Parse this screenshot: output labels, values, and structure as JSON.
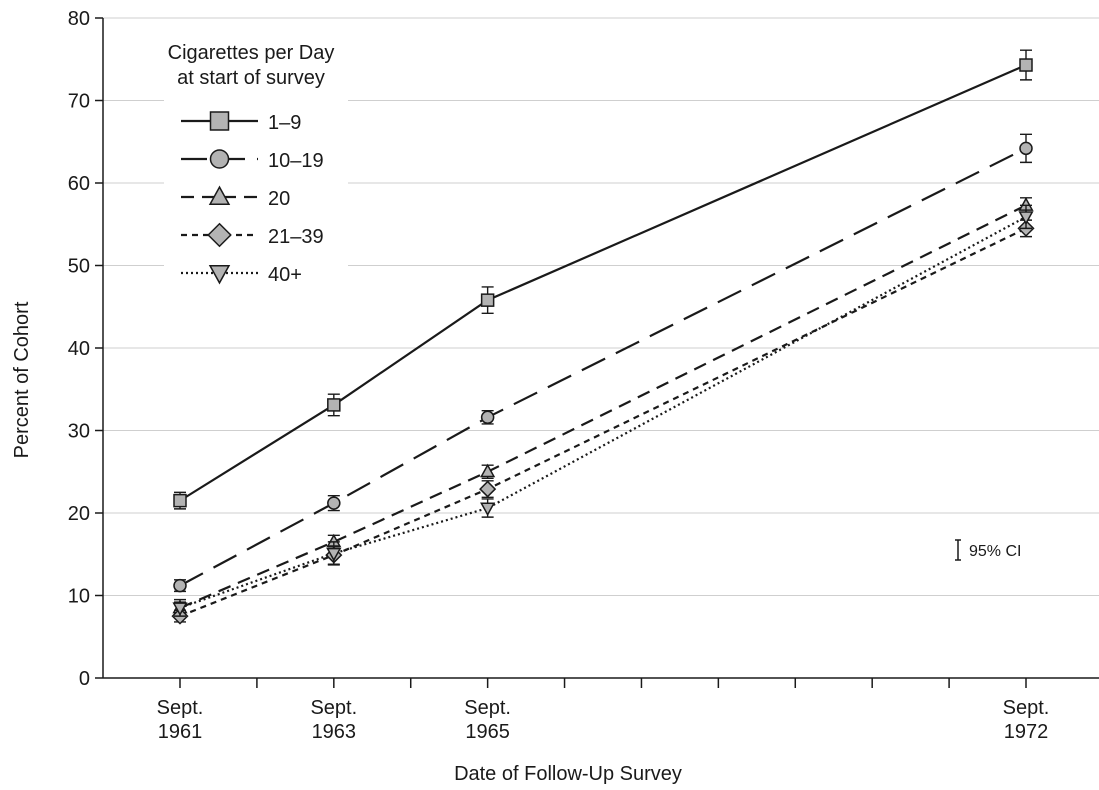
{
  "chart_data": {
    "type": "line",
    "title": "",
    "xlabel": "Date of Follow-Up Survey",
    "ylabel": "Percent of Cohort",
    "x_axis": {
      "range": [
        1961,
        1972
      ],
      "ticks": [
        {
          "x": 1961,
          "line1": "Sept.",
          "line2": "1961"
        },
        {
          "x": 1963,
          "line1": "Sept.",
          "line2": "1963"
        },
        {
          "x": 1965,
          "line1": "Sept.",
          "line2": "1965"
        },
        {
          "x": 1972,
          "line1": "Sept.",
          "line2": "1972"
        }
      ],
      "minor_ticks": [
        1962,
        1964,
        1966,
        1967,
        1968,
        1969,
        1970,
        1971
      ]
    },
    "y_axis": {
      "range": [
        0,
        80
      ],
      "ticks": [
        0,
        10,
        20,
        30,
        40,
        50,
        60,
        70,
        80
      ],
      "gridlines": true
    },
    "legend": {
      "title_line1": "Cigarettes per Day",
      "title_line2": "at start of survey",
      "placement": "top-left"
    },
    "ci_annotation": "95% CI",
    "x": [
      1961,
      1963,
      1965,
      1972
    ],
    "series": [
      {
        "name": "1–9",
        "values": [
          21.5,
          33.1,
          45.8,
          74.3
        ],
        "ci": [
          1.0,
          1.3,
          1.6,
          1.8
        ],
        "marker": "square",
        "dash": "solid"
      },
      {
        "name": "10–19",
        "values": [
          11.2,
          21.2,
          31.6,
          64.2
        ],
        "ci": [
          0.7,
          0.9,
          0.8,
          1.7
        ],
        "marker": "circle",
        "dash": "long-dash"
      },
      {
        "name": "20",
        "values": [
          8.5,
          16.5,
          25.0,
          57.3
        ],
        "ci": [
          0.7,
          0.8,
          0.8,
          0.9
        ],
        "marker": "triangle-up",
        "dash": "dash"
      },
      {
        "name": "21–39",
        "values": [
          7.5,
          14.9,
          22.9,
          54.5
        ],
        "ci": [
          0.7,
          1.1,
          1.0,
          1.0
        ],
        "marker": "diamond",
        "dash": "short-dash"
      },
      {
        "name": "40+",
        "values": [
          8.5,
          15.1,
          20.6,
          55.9
        ],
        "ci": [
          1.0,
          1.4,
          1.1,
          1.4
        ],
        "marker": "triangle-down",
        "dash": "dotted"
      }
    ],
    "colors": {
      "line": "#1a1a1a",
      "marker_fill": "#b3b3b3",
      "grid": "#cfcfcf",
      "axis": "#1a1a1a"
    }
  }
}
